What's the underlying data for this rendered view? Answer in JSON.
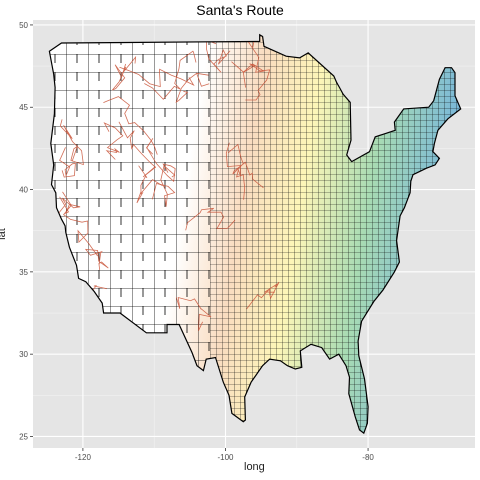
{
  "chart_data": {
    "type": "map",
    "title": "Santa's Route",
    "xlabel": "long",
    "ylabel": "lat",
    "xlim": [
      -127,
      -65
    ],
    "ylim": [
      24.3,
      50.3
    ],
    "x_ticks": [
      -120,
      -100,
      -80
    ],
    "y_ticks": [
      25,
      30,
      35,
      40,
      45,
      50
    ],
    "grid": true,
    "background": "#e5e5e5",
    "gridline_color": "#ffffff",
    "county_border_color": "#000000",
    "route_color": "#c9553a",
    "fill_gradient": [
      "#ffffff",
      "#f8c9a2",
      "#fdf7b8",
      "#a9dbb1",
      "#78b5d6"
    ]
  }
}
